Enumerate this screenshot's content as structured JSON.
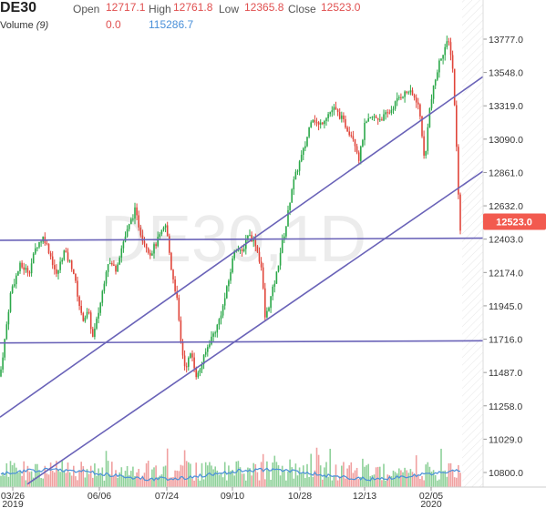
{
  "header": {
    "symbol": "DE30",
    "open_label": "Open",
    "open_value": "12717.1",
    "high_label": "High",
    "high_value": "12761.8",
    "low_label": "Low",
    "low_value": "12365.8",
    "close_label": "Close",
    "close_value": "12523.0",
    "volume_label": "Volume",
    "volume_period": "(9)",
    "volume_value": "0.0",
    "volume_ma_value": "115286.7"
  },
  "watermark": "DE30,1D",
  "colors": {
    "up": "#2ca84a",
    "down": "#e0453a",
    "trendline": "#6a63b8",
    "volume_up": "#8fd19a",
    "volume_down": "#f0a0a0",
    "volume_ma": "#4a90d9",
    "price_tag": "#f25a4f",
    "axis_text": "#333333"
  },
  "chart_data": {
    "type": "candlestick",
    "title": "DE30",
    "timeframe": "1D",
    "y_ticks": [
      "13777.0",
      "13548.0",
      "13319.0",
      "13090.0",
      "12861.0",
      "12632.0",
      "12403.0",
      "12174.0",
      "11945.0",
      "11716.0",
      "11487.0",
      "11258.0",
      "11029.0",
      "10800.0"
    ],
    "x_ticks": [
      {
        "label": "03/26",
        "sub": "2019"
      },
      {
        "label": "06/06",
        "sub": ""
      },
      {
        "label": "07/24",
        "sub": ""
      },
      {
        "label": "09/10",
        "sub": ""
      },
      {
        "label": "10/28",
        "sub": ""
      },
      {
        "label": "12/13",
        "sub": ""
      },
      {
        "label": "02/05",
        "sub": "2020"
      }
    ],
    "ylim": [
      10720,
      13950
    ],
    "last_price": "12523.0",
    "close_path": [
      [
        0,
        11460
      ],
      [
        5,
        11700
      ],
      [
        12,
        12050
      ],
      [
        22,
        12220
      ],
      [
        32,
        12180
      ],
      [
        40,
        12360
      ],
      [
        48,
        12420
      ],
      [
        55,
        12300
      ],
      [
        62,
        12150
      ],
      [
        70,
        12320
      ],
      [
        80,
        12200
      ],
      [
        90,
        11850
      ],
      [
        97,
        11900
      ],
      [
        102,
        11720
      ],
      [
        110,
        11960
      ],
      [
        118,
        12250
      ],
      [
        127,
        12200
      ],
      [
        135,
        12380
      ],
      [
        142,
        12500
      ],
      [
        148,
        12600
      ],
      [
        155,
        12430
      ],
      [
        165,
        12300
      ],
      [
        175,
        12420
      ],
      [
        182,
        12500
      ],
      [
        188,
        12200
      ],
      [
        194,
        12000
      ],
      [
        198,
        11700
      ],
      [
        203,
        11520
      ],
      [
        210,
        11620
      ],
      [
        216,
        11450
      ],
      [
        222,
        11560
      ],
      [
        230,
        11700
      ],
      [
        238,
        11800
      ],
      [
        245,
        11950
      ],
      [
        252,
        12150
      ],
      [
        258,
        12360
      ],
      [
        265,
        12300
      ],
      [
        272,
        12440
      ],
      [
        280,
        12380
      ],
      [
        287,
        12200
      ],
      [
        291,
        11850
      ],
      [
        297,
        12000
      ],
      [
        303,
        12150
      ],
      [
        308,
        12330
      ],
      [
        314,
        12500
      ],
      [
        320,
        12750
      ],
      [
        328,
        12920
      ],
      [
        335,
        13050
      ],
      [
        342,
        13250
      ],
      [
        350,
        13180
      ],
      [
        358,
        13250
      ],
      [
        366,
        13300
      ],
      [
        374,
        13240
      ],
      [
        382,
        13150
      ],
      [
        388,
        13100
      ],
      [
        394,
        12950
      ],
      [
        400,
        13180
      ],
      [
        408,
        13240
      ],
      [
        418,
        13230
      ],
      [
        428,
        13280
      ],
      [
        438,
        13380
      ],
      [
        448,
        13420
      ],
      [
        458,
        13350
      ],
      [
        462,
        13200
      ],
      [
        466,
        12900
      ],
      [
        470,
        13250
      ],
      [
        476,
        13450
      ],
      [
        482,
        13620
      ],
      [
        488,
        13720
      ],
      [
        492,
        13760
      ],
      [
        496,
        13640
      ],
      [
        499,
        13300
      ],
      [
        502,
        12850
      ],
      [
        505,
        12450
      ],
      [
        507,
        12523
      ]
    ],
    "trendlines": [
      {
        "name": "upper-channel",
        "x1": 0,
        "y1": 11180,
        "x2": 530,
        "y2": 13520
      },
      {
        "name": "lower-channel",
        "x1": 30,
        "y1": 10720,
        "x2": 530,
        "y2": 12870
      },
      {
        "name": "horizontal-resistance",
        "x1": 0,
        "y1": 12395,
        "x2": 530,
        "y2": 12410
      },
      {
        "name": "horizontal-support",
        "x1": 0,
        "y1": 11690,
        "x2": 530,
        "y2": 11705
      }
    ]
  }
}
